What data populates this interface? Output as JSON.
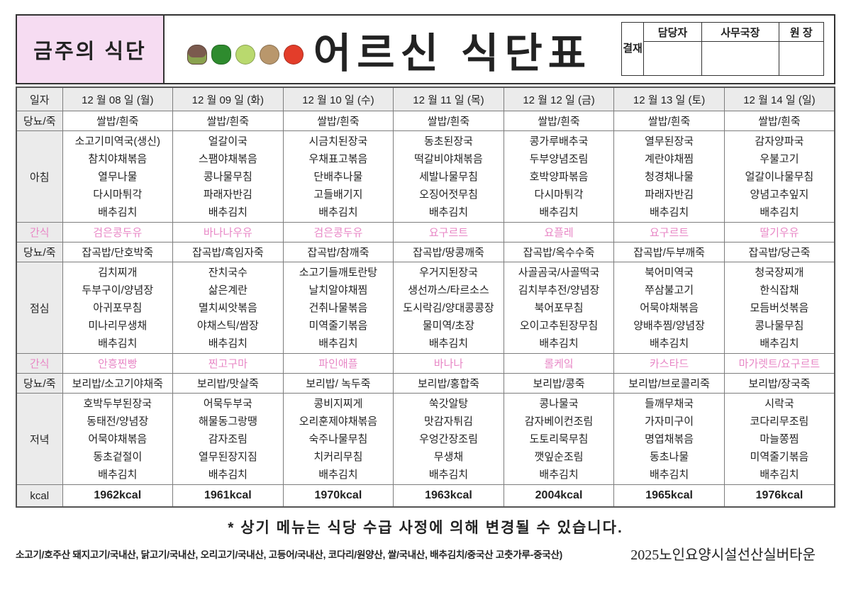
{
  "header": {
    "week_label": "금주의 식단",
    "title": "어르신 식단표",
    "veg_icons": [
      "broccoli",
      "green-pepper",
      "cabbage",
      "potato",
      "tomato"
    ],
    "approval": {
      "stamp": "결재",
      "cols": [
        "담당자",
        "사무국장",
        "원 장"
      ]
    }
  },
  "labels": {
    "date": "일자",
    "rice": "당뇨/죽",
    "breakfast": "아침",
    "snack": "간식",
    "lunch": "점심",
    "dinner": "저녁",
    "kcal": "kcal"
  },
  "days": [
    {
      "date": "12 월 08 일 (월)",
      "rice1": "쌀밥/흰죽",
      "breakfast": [
        "소고기미역국(생신)",
        "참치야채볶음",
        "열무나물",
        "다시마튀각",
        "배추김치"
      ],
      "snack1": "검은콩두유",
      "rice2": "잡곡밥/단호박죽",
      "lunch": [
        "김치찌개",
        "두부구이/양념장",
        "아귀포무침",
        "미나리무생채",
        "배추김치"
      ],
      "snack2": "안흥찐빵",
      "rice3": "보리밥/소고기야채죽",
      "dinner": [
        "호박두부된장국",
        "동태전/양념장",
        "어묵야채볶음",
        "동초겉절이",
        "배추김치"
      ],
      "kcal": "1962kcal"
    },
    {
      "date": "12 월 09 일 (화)",
      "rice1": "쌀밥/흰죽",
      "breakfast": [
        "얼갈이국",
        "스팸야채볶음",
        "콩나물무침",
        "파래자반김",
        "배추김치"
      ],
      "snack1": "바나나우유",
      "rice2": "잡곡밥/흑임자죽",
      "lunch": [
        "잔치국수",
        "삶은계란",
        "멸치씨앗볶음",
        "야채스틱/쌈장",
        "배추김치"
      ],
      "snack2": "찐고구마",
      "rice3": "보리밥/맛살죽",
      "dinner": [
        "어묵두부국",
        "해물동그랑땡",
        "감자조림",
        "열무된장지짐",
        "배추김치"
      ],
      "kcal": "1961kcal"
    },
    {
      "date": "12 월 10 일 (수)",
      "rice1": "쌀밥/흰죽",
      "breakfast": [
        "시금치된장국",
        "우채표고볶음",
        "단배추나물",
        "고들배기지",
        "배추김치"
      ],
      "snack1": "검은콩두유",
      "rice2": "잡곡밥/참깨죽",
      "lunch": [
        "소고기들깨토란탕",
        "날치알야채찜",
        "건취나물볶음",
        "미역줄기볶음",
        "배추김치"
      ],
      "snack2": "파인애플",
      "rice3": "보리밥/ 녹두죽",
      "dinner": [
        "콩비지찌게",
        "오리훈제야채볶음",
        "숙주나물무침",
        "치커리무침",
        "배추김치"
      ],
      "kcal": "1970kcal"
    },
    {
      "date": "12 월 11 일 (목)",
      "rice1": "쌀밥/흰죽",
      "breakfast": [
        "동초된장국",
        "떡갈비야채볶음",
        "세발나물무침",
        "오징어젓무침",
        "배추김치"
      ],
      "snack1": "요구르트",
      "rice2": "잡곡밥/땅콩깨죽",
      "lunch": [
        "우거지된장국",
        "생선까스/타르소스",
        "도시락김/양대콩콩장",
        "물미역/초장",
        "배추김치"
      ],
      "snack2": "바나나",
      "rice3": "보리밥/홍합죽",
      "dinner": [
        "쑥갓알탕",
        "맛감자튀김",
        "우엉간장조림",
        "무생채",
        "배추김치"
      ],
      "kcal": "1963kcal"
    },
    {
      "date": "12 월 12 일 (금)",
      "rice1": "쌀밥/흰죽",
      "breakfast": [
        "콩가루배추국",
        "두부양념조림",
        "호박양파볶음",
        "다시마튀각",
        "배추김치"
      ],
      "snack1": "요플레",
      "rice2": "잡곡밥/옥수수죽",
      "lunch": [
        "사골곰국/사골떡국",
        "김치부추전/양념장",
        "북어포무침",
        "오이고추된장무침",
        "배추김치"
      ],
      "snack2": "롤케잌",
      "rice3": "보리밥/콩죽",
      "dinner": [
        "콩나물국",
        "감자베이컨조림",
        "도토리묵무침",
        "깻잎순조림",
        "배추김치"
      ],
      "kcal": "2004kcal"
    },
    {
      "date": "12 월 13 일 (토)",
      "rice1": "쌀밥/흰죽",
      "breakfast": [
        "열무된장국",
        "계란야채찜",
        "청경채나물",
        "파래자반김",
        "배추김치"
      ],
      "snack1": "요구르트",
      "rice2": "잡곡밥/두부깨죽",
      "lunch": [
        "북어미역국",
        "쭈삼불고기",
        "어묵야채볶음",
        "양배추찜/양념장",
        "배추김치"
      ],
      "snack2": "카스타드",
      "rice3": "보리밥/브로콜리죽",
      "dinner": [
        "들깨무채국",
        "가자미구이",
        "명엽채볶음",
        "동초나물",
        "배추김치"
      ],
      "kcal": "1965kcal"
    },
    {
      "date": "12 월 14 일 (일)",
      "rice1": "쌀밥/흰죽",
      "breakfast": [
        "감자양파국",
        "우불고기",
        "얼갈이나물무침",
        "양념고추잎지",
        "배추김치"
      ],
      "snack1": "딸기우유",
      "rice2": "잡곡밥/당근죽",
      "lunch": [
        "청국장찌개",
        "한식잡채",
        "모듬버섯볶음",
        "콩나물무침",
        "배추김치"
      ],
      "snack2": "마가렛트/요구르트",
      "rice3": "보리밥/장국죽",
      "dinner": [
        "시락국",
        "코다리무조림",
        "마늘쫑찜",
        "미역줄기볶음",
        "배추김치"
      ],
      "kcal": "1976kcal"
    }
  ],
  "footer": {
    "note": "* 상기 메뉴는 식당 수급 사정에 의해 변경될 수 있습니다.",
    "origin": "소고기/호주산 돼지고기/국내산, 닭고기/국내산, 오리고기/국내산, 고등어/국내산, 코다리/원양산, 쌀/국내산, 배추김치/중국산  고춧가루-중국산)",
    "facility": "2025노인요양시설선산실버타운"
  },
  "colors": {
    "snack_pink": "#e887c6",
    "week_label_bg": "#f6dcf2",
    "label_gray": "#ebebeb"
  }
}
